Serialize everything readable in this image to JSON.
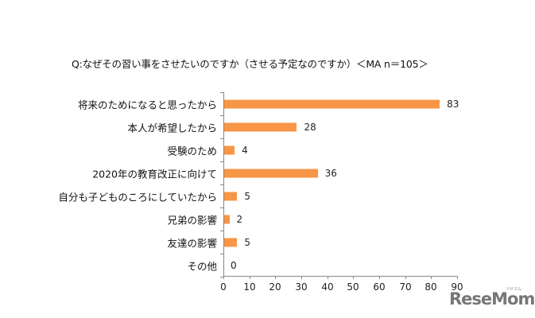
{
  "chart_data": {
    "type": "bar",
    "orientation": "horizontal",
    "title": "Q:なぜその習い事をさせたいのですか（させる予定なのですか）＜MA n＝105＞",
    "categories": [
      "将来のためになると思ったから",
      "本人が希望したから",
      "受験のため",
      "2020年の教育改正に向けて",
      "自分も子どものころにしていたから",
      "兄弟の影響",
      "友達の影響",
      "その他"
    ],
    "values": [
      83,
      28,
      4,
      36,
      5,
      2,
      5,
      0
    ],
    "xlabel": "",
    "ylabel": "",
    "xlim": [
      0,
      90
    ],
    "xticks": [
      "0",
      "10",
      "20",
      "30",
      "40",
      "50",
      "60",
      "70",
      "80",
      "90"
    ],
    "grid": false,
    "legend": null,
    "bar_color": "#F79646"
  },
  "watermark": {
    "logo": "ReseMom",
    "sub": "リセマム"
  }
}
